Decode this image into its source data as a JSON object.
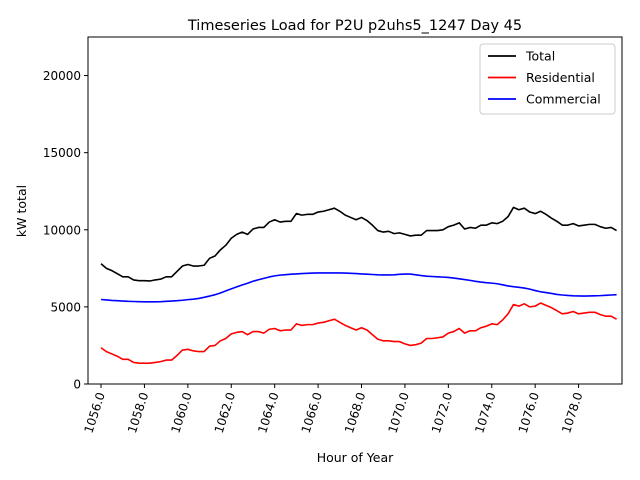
{
  "chart_data": {
    "type": "line",
    "title": "Timeseries Load for P2U p2uhs5_1247  Day 45",
    "xlabel": "Hour of Year",
    "ylabel": "kW total",
    "xlim": [
      1055.4,
      1080.0
    ],
    "ylim": [
      0,
      22500
    ],
    "grid": false,
    "legend_position": "top-right",
    "x_ticks": [
      1056,
      1058,
      1060,
      1062,
      1064,
      1066,
      1068,
      1070,
      1072,
      1074,
      1076,
      1078
    ],
    "x_tick_labels": [
      "1056.0",
      "1058.0",
      "1060.0",
      "1062.0",
      "1064.0",
      "1066.0",
      "1068.0",
      "1070.0",
      "1072.0",
      "1074.0",
      "1076.0",
      "1078.0"
    ],
    "y_ticks": [
      0,
      5000,
      10000,
      15000,
      20000
    ],
    "y_tick_labels": [
      "0",
      "5000",
      "10000",
      "15000",
      "20000"
    ],
    "x_start": 1056,
    "x_step": 0.25,
    "series": [
      {
        "name": "Total",
        "color": "#000000",
        "values": [
          7800,
          7500,
          7350,
          7150,
          6950,
          6950,
          6750,
          6700,
          6700,
          6680,
          6750,
          6800,
          6950,
          6950,
          7300,
          7650,
          7750,
          7650,
          7650,
          7700,
          8150,
          8300,
          8700,
          9000,
          9450,
          9700,
          9850,
          9700,
          10050,
          10150,
          10150,
          10500,
          10650,
          10500,
          10550,
          10550,
          11050,
          10950,
          11000,
          11000,
          11150,
          11200,
          11300,
          11400,
          11200,
          10950,
          10800,
          10650,
          10800,
          10600,
          10300,
          9950,
          9850,
          9900,
          9750,
          9800,
          9700,
          9600,
          9650,
          9650,
          9950,
          9950,
          9950,
          10000,
          10200,
          10300,
          10450,
          10050,
          10150,
          10100,
          10300,
          10300,
          10450,
          10400,
          10550,
          10850,
          11450,
          11300,
          11400,
          11150,
          11050,
          11200,
          11000,
          10750,
          10550,
          10300,
          10300,
          10400,
          10250,
          10300,
          10350,
          10350,
          10200,
          10100,
          10150,
          9950
        ]
      },
      {
        "name": "Residential",
        "color": "#ff0000",
        "values": [
          2350,
          2100,
          1950,
          1800,
          1600,
          1600,
          1400,
          1350,
          1350,
          1350,
          1400,
          1450,
          1550,
          1550,
          1850,
          2200,
          2250,
          2150,
          2100,
          2100,
          2450,
          2500,
          2800,
          2950,
          3250,
          3350,
          3400,
          3200,
          3400,
          3400,
          3300,
          3550,
          3600,
          3450,
          3500,
          3500,
          3900,
          3800,
          3850,
          3850,
          3950,
          4000,
          4100,
          4200,
          4000,
          3800,
          3650,
          3500,
          3650,
          3500,
          3200,
          2900,
          2800,
          2800,
          2750,
          2750,
          2600,
          2500,
          2550,
          2650,
          2950,
          2950,
          3000,
          3050,
          3300,
          3400,
          3600,
          3300,
          3450,
          3450,
          3650,
          3750,
          3900,
          3850,
          4150,
          4550,
          5150,
          5050,
          5200,
          5000,
          5050,
          5250,
          5100,
          4950,
          4750,
          4550,
          4600,
          4700,
          4550,
          4600,
          4650,
          4650,
          4500,
          4400,
          4400,
          4200
        ]
      },
      {
        "name": "Commercial",
        "color": "#0000ff",
        "values": [
          5480,
          5450,
          5420,
          5400,
          5380,
          5360,
          5350,
          5340,
          5330,
          5330,
          5330,
          5340,
          5360,
          5380,
          5400,
          5430,
          5470,
          5500,
          5550,
          5620,
          5700,
          5790,
          5900,
          6040,
          6170,
          6300,
          6420,
          6530,
          6660,
          6760,
          6850,
          6940,
          7010,
          7060,
          7090,
          7120,
          7140,
          7160,
          7180,
          7190,
          7200,
          7200,
          7200,
          7200,
          7200,
          7190,
          7180,
          7160,
          7140,
          7120,
          7100,
          7080,
          7070,
          7070,
          7080,
          7110,
          7130,
          7130,
          7080,
          7030,
          6990,
          6970,
          6950,
          6930,
          6910,
          6870,
          6820,
          6770,
          6720,
          6660,
          6610,
          6570,
          6540,
          6500,
          6430,
          6360,
          6310,
          6270,
          6220,
          6150,
          6060,
          5980,
          5930,
          5870,
          5810,
          5770,
          5740,
          5720,
          5710,
          5700,
          5710,
          5720,
          5730,
          5750,
          5770,
          5790
        ]
      }
    ]
  }
}
